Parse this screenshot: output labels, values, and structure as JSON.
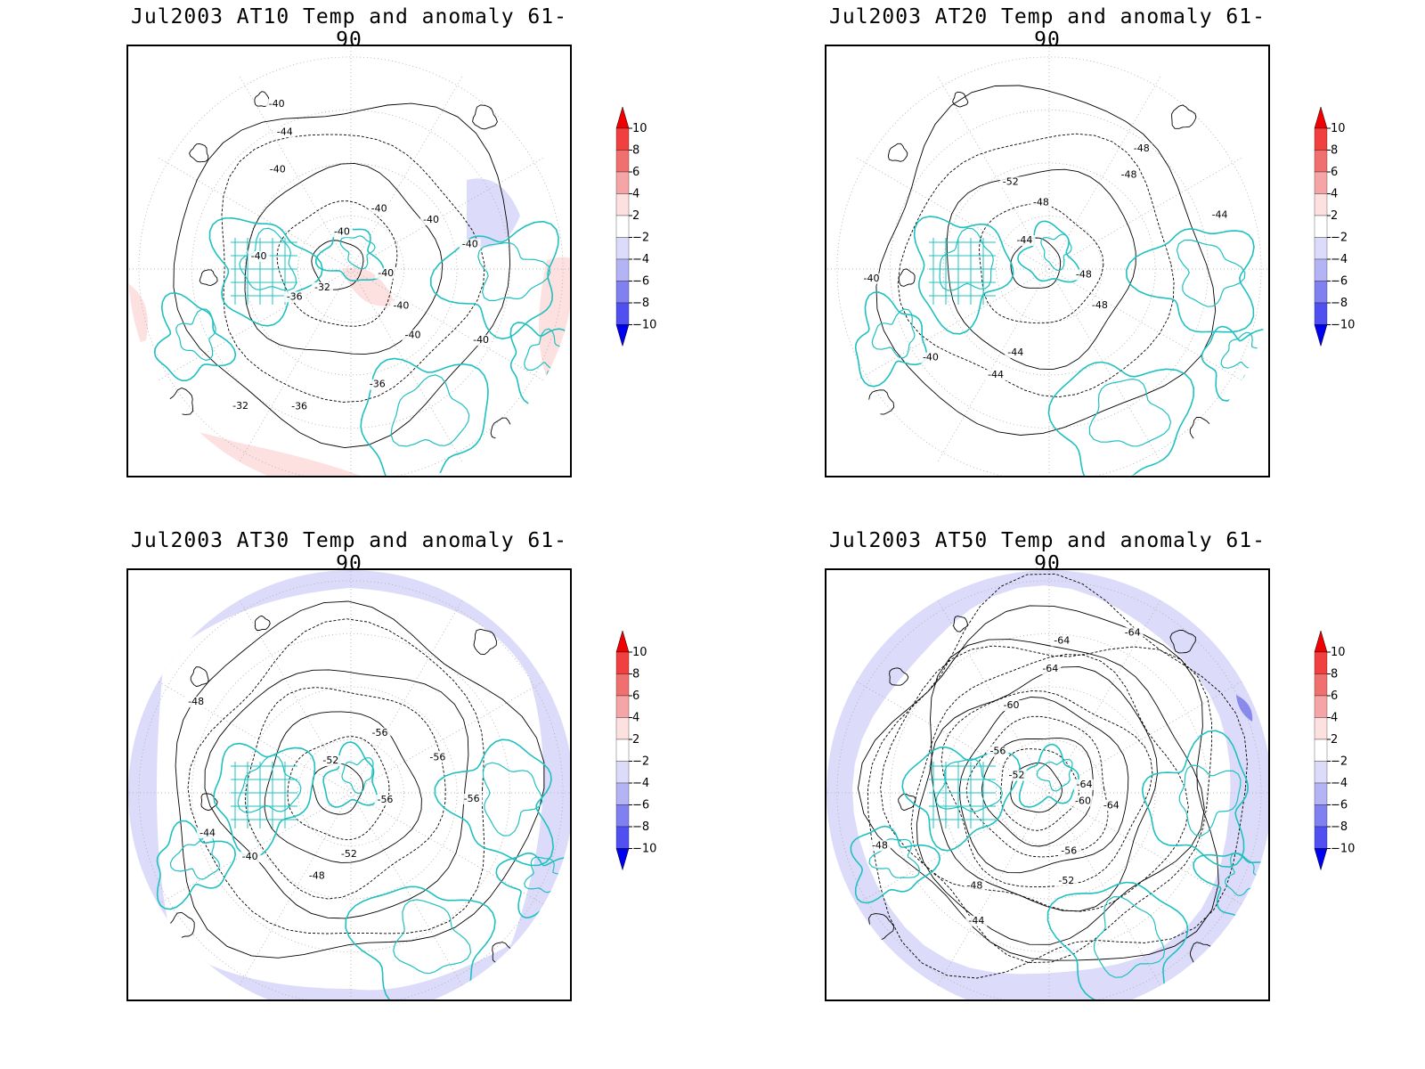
{
  "panels": [
    {
      "title": "Jul2003 AT10 Temp and anomaly 61-90",
      "anomaly": "warm",
      "contour_labels": [
        "-40",
        "-40",
        "-40",
        "-36",
        "-36",
        "-32",
        "-32",
        "-36",
        "-40",
        "-40",
        "-44",
        "-40",
        "-40",
        "-40",
        "-40",
        "-40",
        "-40"
      ]
    },
    {
      "title": "Jul2003 AT20 Temp and anomaly 61-90",
      "anomaly": "neutral",
      "contour_labels": [
        "-48",
        "-48",
        "-44",
        "-44",
        "-40",
        "-40",
        "-44",
        "-48",
        "-52",
        "-48",
        "-48",
        "-44"
      ]
    },
    {
      "title": "Jul2003 AT30 Temp and anomaly 61-90",
      "anomaly": "cool-edge",
      "contour_labels": [
        "-56",
        "-52",
        "-48",
        "-40",
        "-44",
        "-48",
        "-52",
        "-56",
        "-56",
        "-56"
      ]
    },
    {
      "title": "Jul2003 AT50 Temp and anomaly 61-90",
      "anomaly": "cool-ring",
      "contour_labels": [
        "-60",
        "-56",
        "-52",
        "-48",
        "-44",
        "-48",
        "-52",
        "-56",
        "-60",
        "-64",
        "-64",
        "-64",
        "-64",
        "-64"
      ]
    }
  ],
  "colorbar": {
    "labels": [
      "10",
      "8",
      "6",
      "4",
      "2",
      "−2",
      "−4",
      "−6",
      "−8",
      "−10"
    ],
    "colors": [
      "#f00000",
      "#f04040",
      "#f07070",
      "#f5a5a5",
      "#fde0e0",
      "#ffffff",
      "#dcdcfa",
      "#b4b4f5",
      "#8080f0",
      "#5050f0",
      "#0000f0"
    ]
  },
  "colors": {
    "coastline": "#20c0c0",
    "contour": "#000000"
  }
}
